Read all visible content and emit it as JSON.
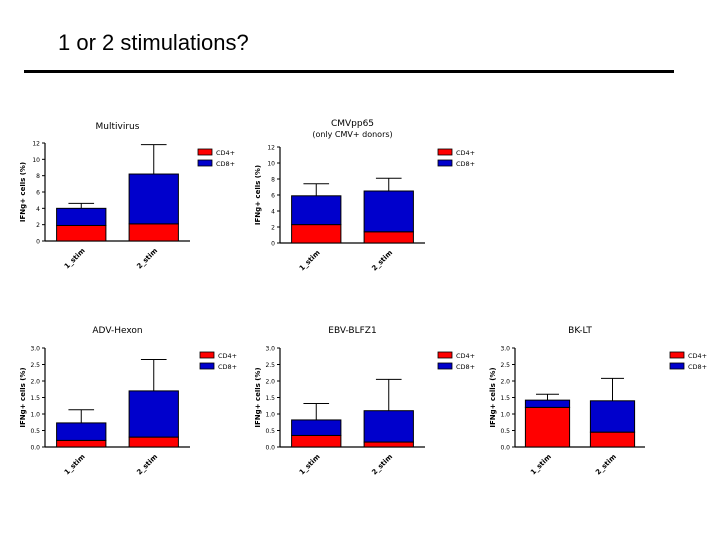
{
  "slide": {
    "title": "1 or 2 stimulations?"
  },
  "colors": {
    "cd4": "#ff0000",
    "cd8": "#0000cc",
    "axis": "#000000"
  },
  "chart_data": [
    {
      "type": "bar",
      "stacked": true,
      "title": "Multivirus",
      "ylabel": "IFNg+ cells (%)",
      "xlabel": "",
      "categories": [
        "1_stim",
        "2_stim"
      ],
      "series": [
        {
          "name": "CD4+",
          "values": [
            1.9,
            2.1
          ]
        },
        {
          "name": "CD8+",
          "values": [
            2.1,
            6.1
          ]
        }
      ],
      "error_bars": [
        0.6,
        3.6
      ],
      "ylim": [
        0,
        12
      ],
      "yticks": [
        "0",
        "2",
        "4",
        "6",
        "8",
        "10",
        "12"
      ],
      "legend": [
        "CD4+",
        "CD8+"
      ],
      "legend_position": "top-right"
    },
    {
      "type": "bar",
      "stacked": true,
      "title": "CMVpp65",
      "subtitle": "(only CMV+ donors)",
      "ylabel": "IFNg+ cells (%)",
      "xlabel": "",
      "categories": [
        "1_stim",
        "2_stim"
      ],
      "series": [
        {
          "name": "CD4+",
          "values": [
            2.3,
            1.4
          ]
        },
        {
          "name": "CD8+",
          "values": [
            3.6,
            5.1
          ]
        }
      ],
      "error_bars": [
        1.5,
        1.6
      ],
      "ylim": [
        0,
        12
      ],
      "yticks": [
        "0",
        "2",
        "4",
        "6",
        "8",
        "10",
        "12"
      ],
      "legend": [
        "CD4+",
        "CD8+"
      ],
      "legend_position": "top-right"
    },
    {
      "type": "bar",
      "stacked": true,
      "title": "ADV-Hexon",
      "ylabel": "IFNg+ cells (%)",
      "xlabel": "",
      "categories": [
        "1_stim",
        "2_stim"
      ],
      "series": [
        {
          "name": "CD4+",
          "values": [
            0.2,
            0.3
          ]
        },
        {
          "name": "CD8+",
          "values": [
            0.53,
            1.4
          ]
        }
      ],
      "error_bars": [
        0.4,
        0.95
      ],
      "ylim": [
        0,
        3.0
      ],
      "yticks": [
        "0.0",
        "0.5",
        "1.0",
        "1.5",
        "2.0",
        "2.5",
        "3.0"
      ],
      "legend": [
        "CD4+",
        "CD8+"
      ],
      "legend_position": "top-right"
    },
    {
      "type": "bar",
      "stacked": true,
      "title": "EBV-BLFZ1",
      "ylabel": "IFNg+ cells (%)",
      "xlabel": "",
      "categories": [
        "1_stim",
        "2_stim"
      ],
      "series": [
        {
          "name": "CD4+",
          "values": [
            0.35,
            0.15
          ]
        },
        {
          "name": "CD8+",
          "values": [
            0.47,
            0.95
          ]
        }
      ],
      "error_bars": [
        0.5,
        0.95
      ],
      "ylim": [
        0,
        3.0
      ],
      "yticks": [
        "0.0",
        "0.5",
        "1.0",
        "1.5",
        "2.0",
        "2.5",
        "3.0"
      ],
      "legend": [
        "CD4+",
        "CD8+"
      ],
      "legend_position": "top-right"
    },
    {
      "type": "bar",
      "stacked": true,
      "title": "BK-LT",
      "ylabel": "IFNg+ cells (%)",
      "xlabel": "",
      "categories": [
        "1_stim",
        "2_stim"
      ],
      "series": [
        {
          "name": "CD4+",
          "values": [
            1.2,
            0.45
          ]
        },
        {
          "name": "CD8+",
          "values": [
            0.22,
            0.95
          ]
        }
      ],
      "error_bars": [
        0.18,
        0.68
      ],
      "ylim": [
        0,
        3.0
      ],
      "yticks": [
        "0.0",
        "0.5",
        "1.0",
        "1.5",
        "2.0",
        "2.5",
        "3.0"
      ],
      "legend": [
        "CD4+",
        "CD8+"
      ],
      "legend_position": "top-right"
    }
  ]
}
